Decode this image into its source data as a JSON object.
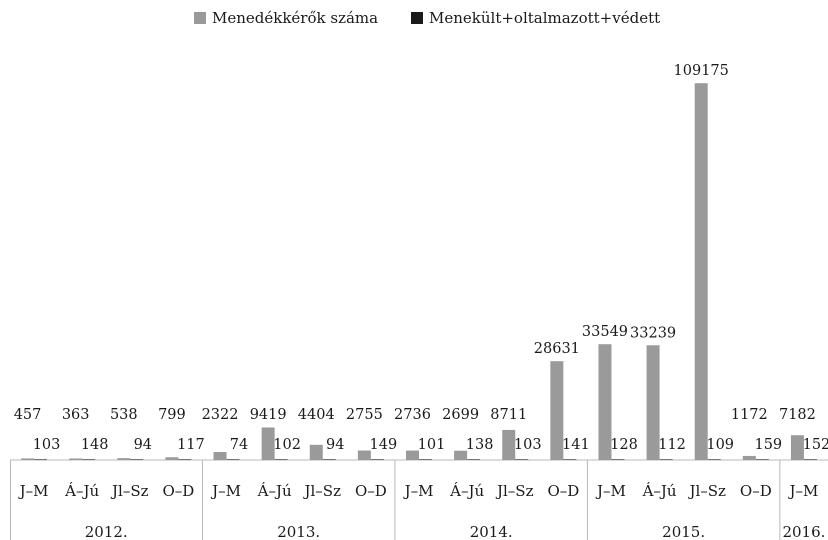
{
  "chart_data": {
    "type": "bar",
    "title": "",
    "xlabel": "",
    "ylabel": "",
    "ylim": [
      0,
      113000
    ],
    "legend_position": "top",
    "categories": [
      "J–M",
      "Á–Jú",
      "Jl–Sz",
      "O–D",
      "J–M",
      "Á–Jú",
      "Jl–Sz",
      "O–D",
      "J–M",
      "Á–Jú",
      "Jl–Sz",
      "O–D",
      "J–M",
      "Á–Jú",
      "Jl–Sz",
      "O–D",
      "J–M"
    ],
    "groups": [
      {
        "label": "2012.",
        "count": 4
      },
      {
        "label": "2013.",
        "count": 4
      },
      {
        "label": "2014.",
        "count": 4
      },
      {
        "label": "2015.",
        "count": 4
      },
      {
        "label": "2016.",
        "count": 1
      }
    ],
    "series": [
      {
        "name": "Menedékkérők száma",
        "color": "#9a9a9a",
        "values": [
          457,
          363,
          538,
          799,
          2322,
          9419,
          4404,
          2755,
          2736,
          2699,
          8711,
          28631,
          33549,
          33239,
          109175,
          1172,
          7182
        ]
      },
      {
        "name": "Menekült+oltalmazott+védett",
        "color": "#1a1a1a",
        "values": [
          103,
          148,
          94,
          117,
          74,
          102,
          94,
          149,
          101,
          138,
          103,
          141,
          128,
          112,
          109,
          159,
          152
        ]
      }
    ]
  }
}
